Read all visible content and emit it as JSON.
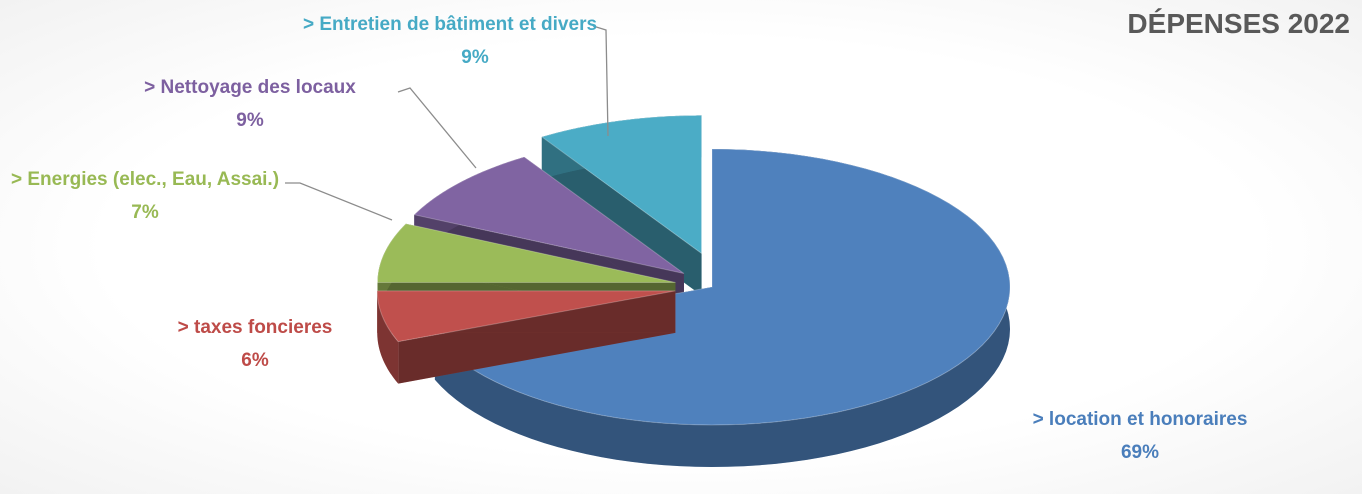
{
  "chart_data": {
    "type": "pie",
    "title": "DÉPENSES 2022",
    "categories": [
      "> location et honoraires",
      "> taxes foncieres",
      "> Energies (elec., Eau, Assai.)",
      "> Nettoyage des locaux",
      "> Entretien de bâtiment et divers"
    ],
    "values": [
      69,
      6,
      7,
      9,
      9
    ],
    "value_labels": [
      "69%",
      "6%",
      "7%",
      "9%",
      "9%"
    ],
    "colors": [
      "#4f81bd",
      "#c0504d",
      "#9bbb59",
      "#8064a2",
      "#4bacc6"
    ]
  }
}
